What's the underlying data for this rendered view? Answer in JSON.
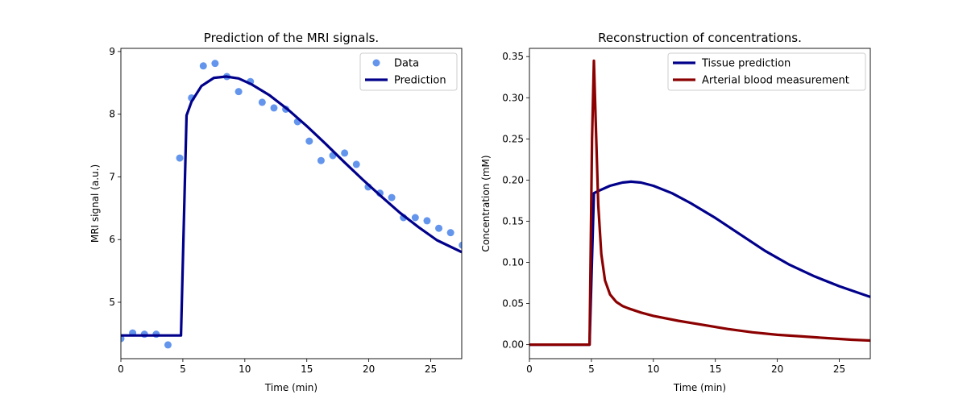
{
  "chart_data": [
    {
      "type": "line",
      "title": "Prediction of the MRI signals.",
      "xlabel": "Time (min)",
      "ylabel": "MRI signal (a.u.)",
      "xlim": [
        0,
        27.5
      ],
      "ylim": [
        4.1,
        9.05
      ],
      "xticks": [
        0,
        5,
        10,
        15,
        20,
        25
      ],
      "yticks": [
        5,
        6,
        7,
        8,
        9
      ],
      "grid": false,
      "legend_position": "top-right",
      "series": [
        {
          "name": "Data",
          "kind": "scatter",
          "color": "#6495ed",
          "x": [
            0,
            0.95,
            1.9,
            2.85,
            3.8,
            4.75,
            5.7,
            6.65,
            7.6,
            8.55,
            9.5,
            10.45,
            11.4,
            12.35,
            13.3,
            14.25,
            15.2,
            16.15,
            17.1,
            18.05,
            19.0,
            19.95,
            20.9,
            21.85,
            22.8,
            23.75,
            24.7,
            25.65,
            26.6,
            27.55
          ],
          "y": [
            4.42,
            4.51,
            4.49,
            4.49,
            4.32,
            7.3,
            8.26,
            8.77,
            8.81,
            8.6,
            8.36,
            8.52,
            8.19,
            8.1,
            8.08,
            7.88,
            7.57,
            7.26,
            7.34,
            7.38,
            7.2,
            6.84,
            6.74,
            6.67,
            6.35,
            6.35,
            6.3,
            6.18,
            6.11,
            5.91
          ]
        },
        {
          "name": "Prediction",
          "kind": "line",
          "color": "#00008b",
          "x": [
            0,
            4.85,
            5.3,
            5.7,
            6.5,
            7.5,
            8.5,
            9.5,
            10.5,
            12,
            13.5,
            15,
            16.5,
            18,
            19.5,
            21,
            22.5,
            24,
            25.5,
            27.5
          ],
          "y": [
            4.47,
            4.47,
            7.98,
            8.2,
            8.45,
            8.58,
            8.6,
            8.57,
            8.48,
            8.3,
            8.07,
            7.81,
            7.53,
            7.24,
            6.96,
            6.69,
            6.43,
            6.2,
            5.99,
            5.8
          ]
        }
      ]
    },
    {
      "type": "line",
      "title": "Reconstruction of concentrations.",
      "xlabel": "Time (min)",
      "ylabel": "Concentration (mM)",
      "xlim": [
        0,
        27.5
      ],
      "ylim": [
        -0.017,
        0.36
      ],
      "xticks": [
        0,
        5,
        10,
        15,
        20,
        25
      ],
      "yticks": [
        0.0,
        0.05,
        0.1,
        0.15,
        0.2,
        0.25,
        0.3,
        0.35
      ],
      "ytick_labels": [
        "0.00",
        "0.05",
        "0.10",
        "0.15",
        "0.20",
        "0.25",
        "0.30",
        "0.35"
      ],
      "grid": false,
      "legend_position": "top-right",
      "series": [
        {
          "name": "Tissue prediction",
          "kind": "line",
          "color": "#00008b",
          "x": [
            0,
            4.85,
            5.2,
            5.6,
            6.5,
            7.5,
            8.2,
            9,
            10,
            11.5,
            13,
            15,
            17,
            19,
            21,
            23,
            25,
            27.5
          ],
          "y": [
            0,
            0,
            0.184,
            0.187,
            0.193,
            0.197,
            0.198,
            0.197,
            0.193,
            0.184,
            0.172,
            0.154,
            0.134,
            0.114,
            0.097,
            0.083,
            0.071,
            0.058
          ]
        },
        {
          "name": "Arterial blood measurement",
          "kind": "line",
          "color": "#8b0000",
          "x": [
            0,
            4.85,
            5.05,
            5.2,
            5.35,
            5.55,
            5.8,
            6.1,
            6.5,
            7,
            7.5,
            8,
            9,
            10,
            12,
            14,
            16,
            18,
            20,
            22,
            24,
            26,
            27.5
          ],
          "y": [
            0,
            0,
            0.25,
            0.345,
            0.27,
            0.17,
            0.11,
            0.078,
            0.061,
            0.052,
            0.047,
            0.044,
            0.039,
            0.035,
            0.029,
            0.024,
            0.019,
            0.015,
            0.012,
            0.01,
            0.008,
            0.006,
            0.005
          ]
        }
      ]
    }
  ]
}
